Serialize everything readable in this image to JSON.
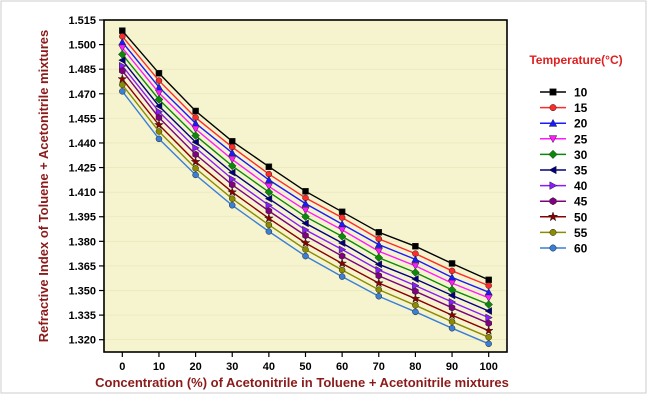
{
  "chart_data": {
    "type": "line",
    "xlabel": "Concentration (%) of Acetonitrile in Toluene + Acetonitrile mixtures",
    "ylabel": "Refractive Index of Toluene + Acetonitrile mixtures",
    "legend_title": "Temperature(°C)",
    "legend_position": "right",
    "xlim": [
      -5,
      105
    ],
    "ylim": [
      1.3125,
      1.515
    ],
    "x_ticks": [
      0,
      10,
      20,
      30,
      40,
      50,
      60,
      70,
      80,
      90,
      100
    ],
    "y_ticks": [
      1.32,
      1.335,
      1.35,
      1.365,
      1.38,
      1.395,
      1.41,
      1.425,
      1.44,
      1.455,
      1.47,
      1.485,
      1.5,
      1.515
    ],
    "y_tick_labels": [
      "1.320",
      "1.335",
      "1.350",
      "1.365",
      "1.380",
      "1.395",
      "1.410",
      "1.425",
      "1.440",
      "1.455",
      "1.470",
      "1.485",
      "1.500",
      "1.515"
    ],
    "x": [
      0,
      10,
      20,
      30,
      40,
      50,
      60,
      70,
      80,
      90,
      100
    ],
    "series": [
      {
        "name": "10",
        "color": "#000000",
        "marker": "square",
        "values": [
          1.5085,
          1.4825,
          1.4595,
          1.441,
          1.4255,
          1.4105,
          1.398,
          1.3855,
          1.377,
          1.3665,
          1.3565
        ]
      },
      {
        "name": "15",
        "color": "#ff2a2a",
        "marker": "circle",
        "values": [
          1.505,
          1.478,
          1.4555,
          1.4375,
          1.421,
          1.4065,
          1.3945,
          1.3815,
          1.3725,
          1.362,
          1.353
        ]
      },
      {
        "name": "20",
        "color": "#1a1aff",
        "marker": "triangle-up",
        "values": [
          1.5015,
          1.474,
          1.452,
          1.434,
          1.4175,
          1.403,
          1.3905,
          1.378,
          1.369,
          1.358,
          1.349
        ]
      },
      {
        "name": "25",
        "color": "#ff1aff",
        "marker": "triangle-down",
        "values": [
          1.498,
          1.4705,
          1.4485,
          1.43,
          1.4135,
          1.399,
          1.387,
          1.374,
          1.365,
          1.3545,
          1.3455
        ]
      },
      {
        "name": "30",
        "color": "#0a8a0a",
        "marker": "diamond",
        "values": [
          1.494,
          1.4665,
          1.4445,
          1.426,
          1.41,
          1.395,
          1.383,
          1.37,
          1.361,
          1.3505,
          1.3415
        ]
      },
      {
        "name": "35",
        "color": "#000080",
        "marker": "triangle-left",
        "values": [
          1.4905,
          1.4625,
          1.4405,
          1.422,
          1.406,
          1.391,
          1.379,
          1.366,
          1.357,
          1.347,
          1.3375
        ]
      },
      {
        "name": "40",
        "color": "#8a1aff",
        "marker": "triangle-right",
        "values": [
          1.487,
          1.459,
          1.437,
          1.418,
          1.402,
          1.387,
          1.375,
          1.3625,
          1.353,
          1.343,
          1.3335
        ]
      },
      {
        "name": "45",
        "color": "#800080",
        "marker": "hexagon",
        "values": [
          1.484,
          1.4555,
          1.433,
          1.4145,
          1.3985,
          1.3835,
          1.371,
          1.359,
          1.3495,
          1.3395,
          1.33
        ]
      },
      {
        "name": "50",
        "color": "#8b0000",
        "marker": "star",
        "values": [
          1.479,
          1.451,
          1.4285,
          1.41,
          1.394,
          1.379,
          1.3665,
          1.3545,
          1.345,
          1.335,
          1.3255
        ]
      },
      {
        "name": "55",
        "color": "#8c8c00",
        "marker": "circle",
        "values": [
          1.4755,
          1.447,
          1.4245,
          1.406,
          1.39,
          1.375,
          1.3625,
          1.3505,
          1.341,
          1.331,
          1.3215
        ]
      },
      {
        "name": "60",
        "color": "#3a7fd5",
        "marker": "circle",
        "values": [
          1.4715,
          1.4425,
          1.4205,
          1.402,
          1.386,
          1.371,
          1.3585,
          1.3465,
          1.337,
          1.327,
          1.3175
        ]
      }
    ]
  }
}
